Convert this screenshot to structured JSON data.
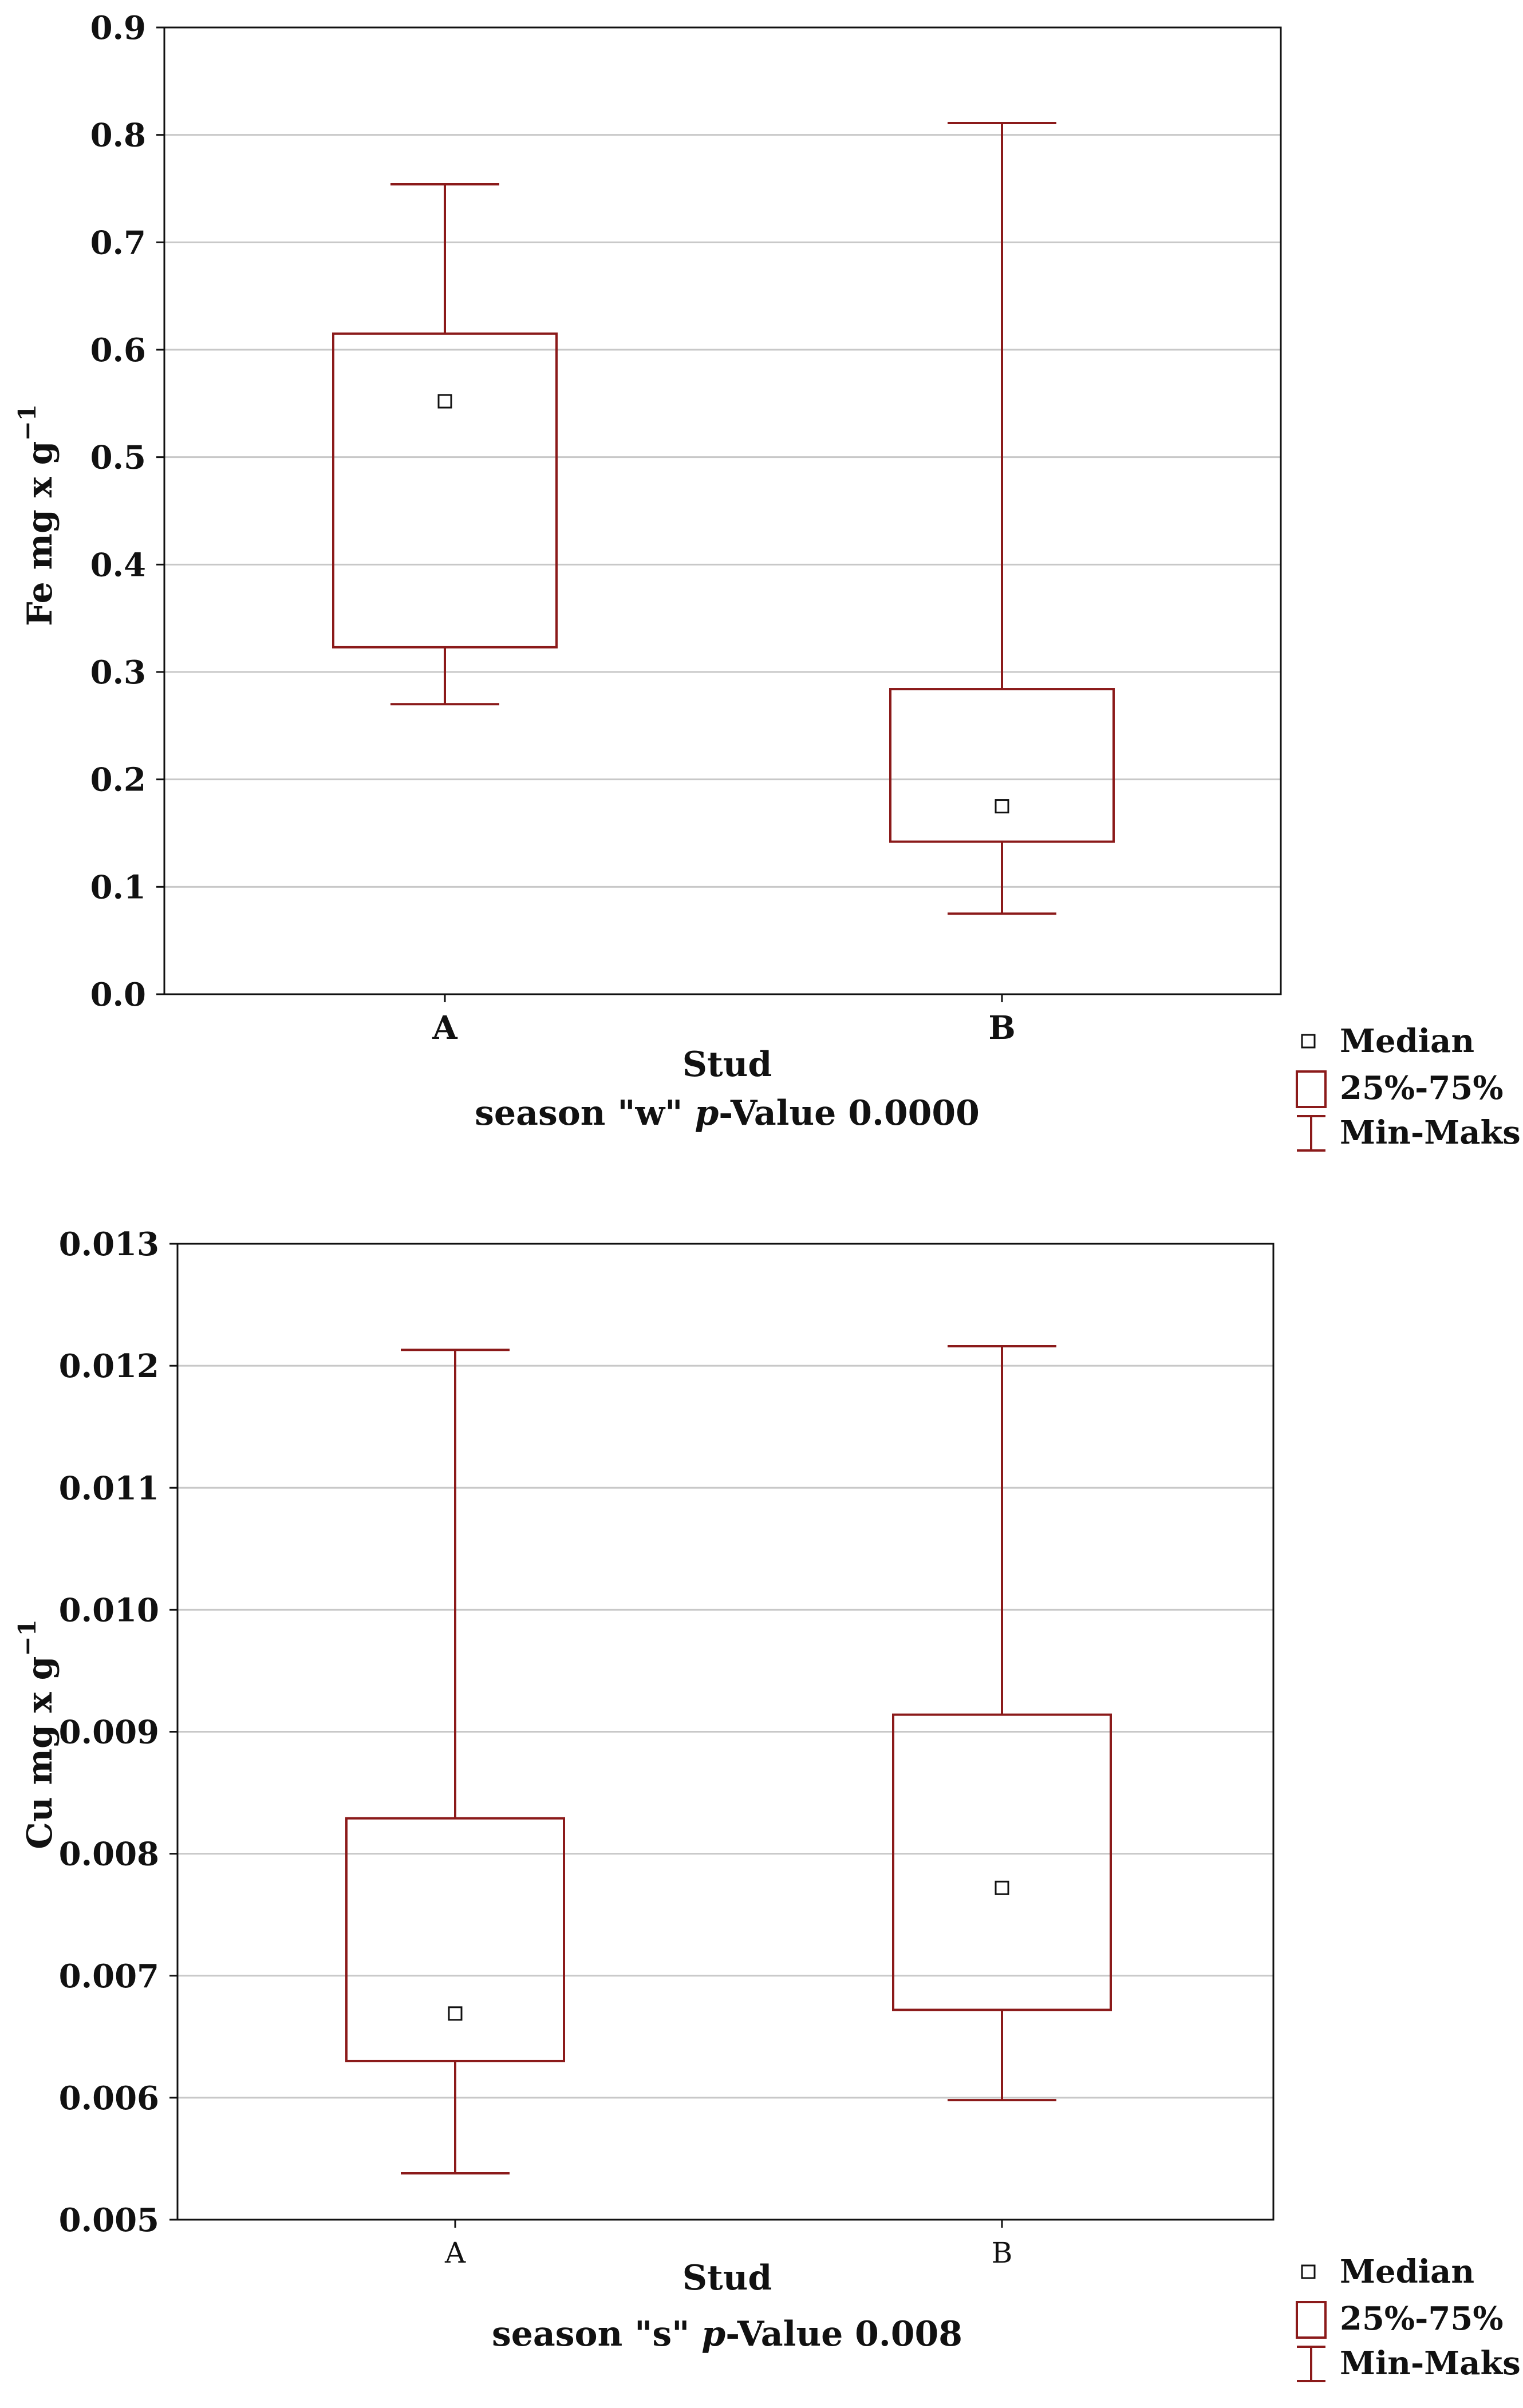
{
  "chart_data": [
    {
      "type": "boxplot",
      "ylabel": "Fe  mg x g",
      "ylabel_superscript": "−1",
      "xlabel": "Stud",
      "subtitle_prefix": "season \"w\" ",
      "subtitle_italic": "p",
      "subtitle_suffix": "-Value 0.0000",
      "ylim": [
        0,
        0.9
      ],
      "y_ticks": [
        "0.0",
        "0.1",
        "0.2",
        "0.3",
        "0.4",
        "0.5",
        "0.6",
        "0.7",
        "0.8",
        "0.9"
      ],
      "categories": [
        "A",
        "B"
      ],
      "boxes": [
        {
          "min": 0.27,
          "q1": 0.323,
          "median": 0.552,
          "q3": 0.615,
          "max": 0.754
        },
        {
          "min": 0.075,
          "q1": 0.142,
          "median": 0.175,
          "q3": 0.284,
          "max": 0.811
        }
      ]
    },
    {
      "type": "boxplot",
      "ylabel": "Cu mg x g",
      "ylabel_superscript": "−1",
      "xlabel": "Stud",
      "subtitle_prefix": "season \"s\" ",
      "subtitle_italic": "p",
      "subtitle_suffix": "-Value 0.008",
      "ylim": [
        0.005,
        0.013
      ],
      "y_ticks": [
        "0.005",
        "0.006",
        "0.007",
        "0.008",
        "0.009",
        "0.010",
        "0.011",
        "0.012",
        "0.013"
      ],
      "categories": [
        "A",
        "B"
      ],
      "boxes": [
        {
          "min": 0.00538,
          "q1": 0.0063,
          "median": 0.00669,
          "q3": 0.00829,
          "max": 0.01213
        },
        {
          "min": 0.00598,
          "q1": 0.00672,
          "median": 0.00772,
          "q3": 0.00914,
          "max": 0.01216
        }
      ]
    }
  ],
  "legend": {
    "median": "Median",
    "iqr": "25%-75%",
    "range": "Min-Maks"
  },
  "colors": {
    "box": "#8b1a1a",
    "grid": "#c8c8c8",
    "axis": "#111111"
  }
}
